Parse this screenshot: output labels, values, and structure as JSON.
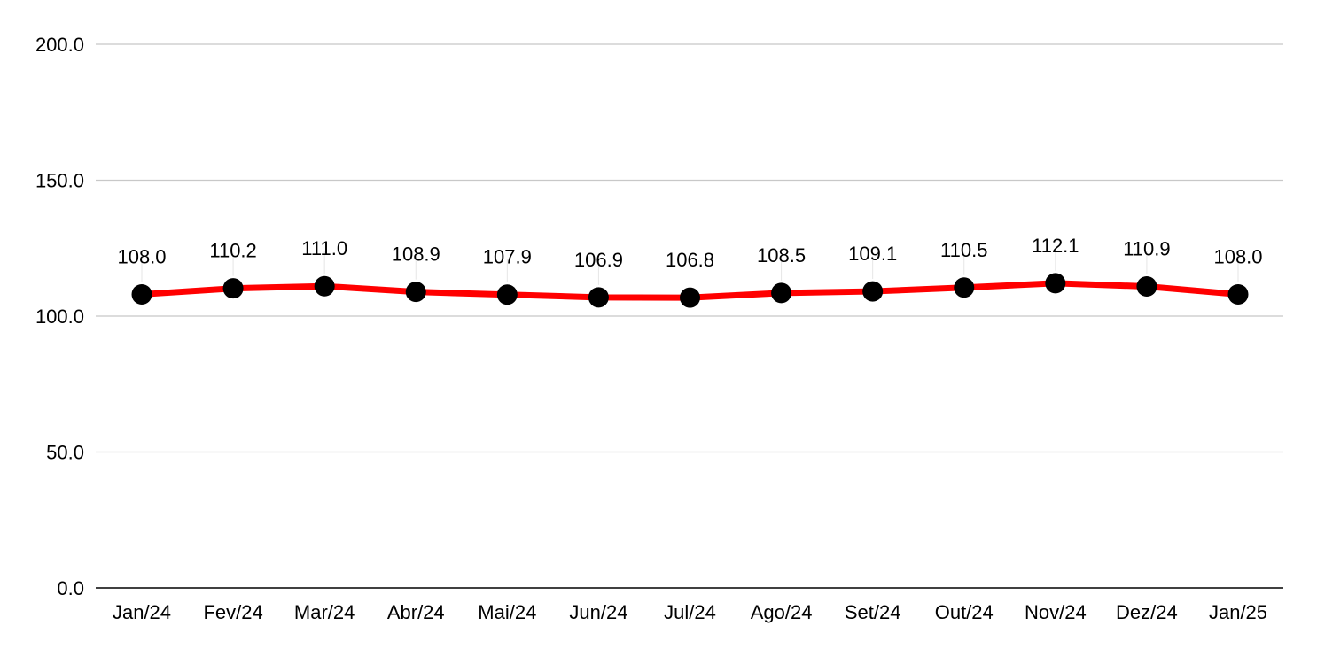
{
  "chart_data": {
    "type": "line",
    "title": "",
    "xlabel": "",
    "ylabel": "",
    "categories": [
      "Jan/24",
      "Fev/24",
      "Mar/24",
      "Abr/24",
      "Mai/24",
      "Jun/24",
      "Jul/24",
      "Ago/24",
      "Set/24",
      "Out/24",
      "Nov/24",
      "Dez/24",
      "Jan/25"
    ],
    "series": [
      {
        "values": [
          108.0,
          110.2,
          111.0,
          108.9,
          107.9,
          106.9,
          106.8,
          108.5,
          109.1,
          110.5,
          112.1,
          110.9,
          108.0
        ],
        "data_labels": [
          "108.0",
          "110.2",
          "111.0",
          "108.9",
          "107.9",
          "106.9",
          "106.8",
          "108.5",
          "109.1",
          "110.5",
          "112.1",
          "110.9",
          "108.0"
        ],
        "line_color": "#ff0000",
        "marker_color": "#000000"
      }
    ],
    "ylim": [
      0,
      200
    ],
    "yticks": [
      0,
      50,
      100,
      150,
      200
    ],
    "ytick_labels": [
      "0.0",
      "50.0",
      "100.0",
      "150.0",
      "200.0"
    ],
    "grid": true,
    "gridline_color": "#c8c8c8",
    "axis_color": "#000000",
    "legend": "none"
  }
}
